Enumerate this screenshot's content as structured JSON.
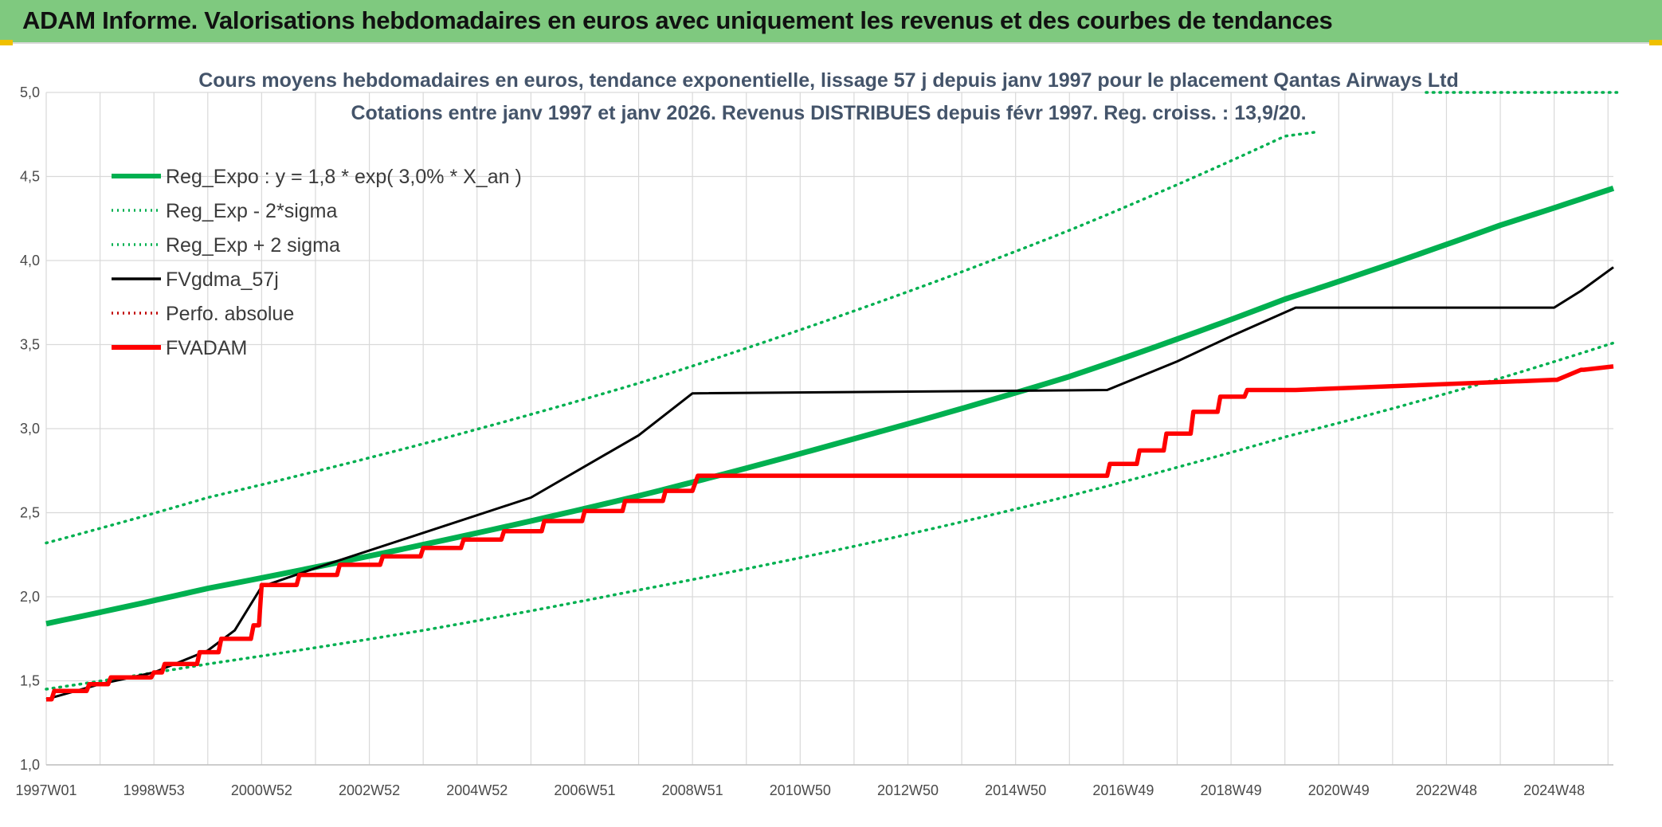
{
  "header": {
    "title": "ADAM Informe. Valorisations hebdomadaires en euros avec uniquement les revenus et des courbes de tendances"
  },
  "colors": {
    "header_bg": "#7fc97f",
    "trend": "#00b050",
    "fv_gdma": "#000000",
    "fv_adam": "#ff0000",
    "perfo": "#c00000"
  },
  "chart_data": {
    "type": "line",
    "title": [
      "Cours moyens hebdomadaires en euros, tendance exponentielle, lissage 57 j depuis janv 1997 pour le placement Qantas Airways Ltd",
      "Cotations entre janv 1997 et janv 2026. Revenus DISTRIBUES depuis févr 1997. Reg. croiss. : 13,9/20."
    ],
    "x_tick_labels": [
      "1997W01",
      "1998W53",
      "2000W52",
      "2002W52",
      "2004W52",
      "2006W51",
      "2008W51",
      "2010W50",
      "2012W50",
      "2014W50",
      "2016W49",
      "2018W49",
      "2020W49",
      "2022W48",
      "2024W48"
    ],
    "x_range": [
      1997.0,
      2026.1
    ],
    "ylim": [
      1.0,
      5.0
    ],
    "y_ticks": [
      "1,0",
      "1,5",
      "2,0",
      "2,5",
      "3,0",
      "3,5",
      "4,0",
      "4,5",
      "5,0"
    ],
    "grid": true,
    "legend_placement": "top-left",
    "legend": [
      {
        "name": "Reg_Expo : y = 1,8 * exp( 3,0% *  X_an )",
        "style": "solid-thick",
        "color": "#00b050"
      },
      {
        "name": "Reg_Exp - 2*sigma",
        "style": "dotted",
        "color": "#00b050"
      },
      {
        "name": "Reg_Exp + 2 sigma",
        "style": "dotted",
        "color": "#00b050"
      },
      {
        "name": "FVgdma_57j",
        "style": "solid",
        "color": "#000000"
      },
      {
        "name": "Perfo. absolue",
        "style": "dotted",
        "color": "#c00000"
      },
      {
        "name": "FVADAM",
        "style": "solid-thick",
        "color": "#ff0000"
      }
    ],
    "trend": {
      "name": "Reg_Expo : y = 1,8 * exp( 3,0% *  X_an )",
      "x": [
        1997.0,
        2000.0,
        2004.0,
        2008.0,
        2012.0,
        2016.0,
        2020.0,
        2024.0,
        2026.1
      ],
      "y": [
        1.84,
        2.05,
        2.31,
        2.6,
        2.94,
        3.31,
        3.77,
        4.21,
        4.43
      ]
    },
    "lower_band": {
      "name": "Reg_Exp - 2*sigma",
      "x": [
        1997.0,
        2000.0,
        2004.0,
        2008.0,
        2012.0,
        2016.0,
        2020.0,
        2024.0,
        2026.1
      ],
      "y": [
        1.45,
        1.6,
        1.8,
        2.04,
        2.3,
        2.6,
        2.95,
        3.3,
        3.51
      ]
    },
    "upper_band": {
      "name": "Reg_Exp + 2 sigma",
      "x": [
        1997.0,
        2000.0,
        2004.0,
        2008.0,
        2012.0,
        2016.0,
        2020.0,
        2026.1
      ],
      "y": [
        2.32,
        2.59,
        2.91,
        3.27,
        3.7,
        4.18,
        4.74,
        5.0
      ]
    },
    "fvadam": {
      "name": "FVADAM",
      "x": [
        1997.0,
        1997.1,
        1997.15,
        1997.75,
        1997.8,
        1998.15,
        1998.2,
        1998.95,
        1999.0,
        1999.15,
        1999.2,
        1999.8,
        1999.85,
        2000.2,
        2000.25,
        2000.8,
        2000.85,
        2000.95,
        2001.0,
        2001.65,
        2001.7,
        2002.4,
        2002.45,
        2003.2,
        2003.25,
        2003.95,
        2004.0,
        2004.7,
        2004.75,
        2005.45,
        2005.5,
        2006.2,
        2006.25,
        2006.95,
        2007.0,
        2007.7,
        2007.75,
        2008.45,
        2008.5,
        2009.0,
        2009.1,
        2016.7,
        2016.75,
        2017.25,
        2017.3,
        2017.75,
        2017.8,
        2018.25,
        2018.3,
        2018.75,
        2018.8,
        2019.25,
        2019.3,
        2019.75,
        2019.8,
        2020.2,
        2025.0,
        2025.05,
        2025.5,
        2025.55,
        2026.1
      ],
      "y": [
        1.39,
        1.39,
        1.44,
        1.44,
        1.48,
        1.48,
        1.52,
        1.52,
        1.55,
        1.55,
        1.6,
        1.6,
        1.67,
        1.67,
        1.75,
        1.75,
        1.83,
        1.83,
        2.07,
        2.07,
        2.13,
        2.13,
        2.19,
        2.19,
        2.24,
        2.24,
        2.29,
        2.29,
        2.34,
        2.34,
        2.39,
        2.39,
        2.45,
        2.45,
        2.51,
        2.51,
        2.57,
        2.57,
        2.63,
        2.63,
        2.72,
        2.72,
        2.79,
        2.79,
        2.87,
        2.87,
        2.97,
        2.97,
        3.1,
        3.1,
        3.19,
        3.19,
        3.23,
        3.23,
        3.23,
        3.23,
        3.29,
        3.29,
        3.35,
        3.35,
        3.37
      ]
    },
    "fvgdma": {
      "name": "FVgdma_57j",
      "x": [
        1997.0,
        1998.0,
        1999.0,
        2000.0,
        2000.5,
        2001.0,
        2002.0,
        2004.0,
        2006.0,
        2008.0,
        2009.0,
        2016.7,
        2018.0,
        2019.0,
        2020.2,
        2025.0,
        2025.5,
        2026.1
      ],
      "y": [
        1.39,
        1.48,
        1.55,
        1.68,
        1.8,
        2.06,
        2.17,
        2.38,
        2.59,
        2.96,
        3.21,
        3.23,
        3.4,
        3.55,
        3.72,
        3.72,
        3.82,
        3.96
      ]
    }
  }
}
